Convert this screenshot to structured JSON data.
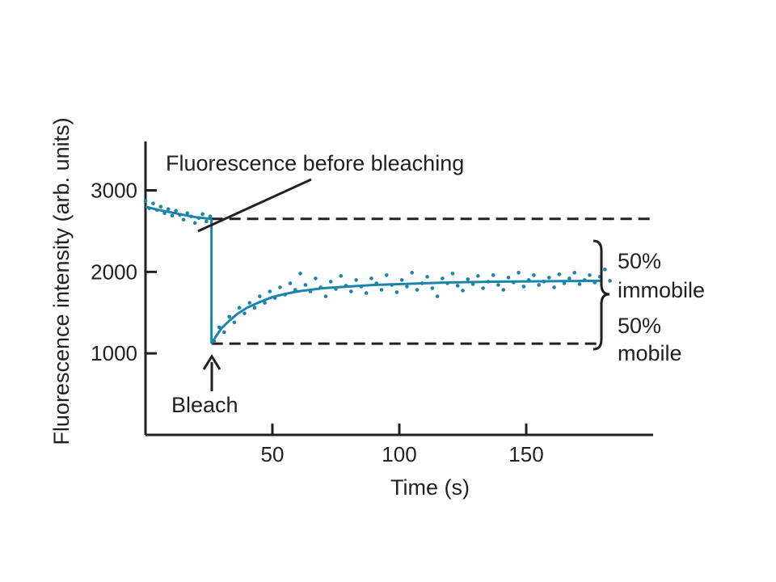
{
  "chart_data": {
    "type": "scatter",
    "title": "",
    "xlabel": "Time (s)",
    "ylabel": "Fluorescence intensity (arb. units)",
    "xlim": [
      0,
      200
    ],
    "ylim": [
      0,
      3600
    ],
    "x_ticks": [
      50,
      100,
      150
    ],
    "y_ticks": [
      1000,
      2000,
      3000
    ],
    "x_tick_labels": [
      "50",
      "100",
      "150"
    ],
    "y_tick_labels": [
      "1000",
      "2000",
      "3000"
    ],
    "grid": false,
    "legend": "none",
    "colors": {
      "data": "#1b84a8",
      "axes": "#231f20"
    },
    "bleach_time": 26,
    "pre_bleach_level": 2650,
    "post_bleach_level": 1120,
    "recovery_plateau": 1890,
    "fit": {
      "before": {
        "x": [
          0,
          5,
          10,
          15,
          20,
          26
        ],
        "y": [
          2800,
          2760,
          2730,
          2700,
          2670,
          2650
        ]
      },
      "after": {
        "x": [
          26,
          28,
          30,
          33,
          36,
          40,
          45,
          50,
          55,
          60,
          70,
          80,
          90,
          100,
          120,
          140,
          160,
          180
        ],
        "y": [
          1120,
          1220,
          1310,
          1400,
          1480,
          1560,
          1630,
          1690,
          1730,
          1760,
          1800,
          1820,
          1840,
          1850,
          1870,
          1880,
          1885,
          1890
        ]
      }
    },
    "points": {
      "x": [
        0,
        1.5,
        3,
        4.5,
        6,
        7.5,
        9,
        10.5,
        12,
        13.5,
        15,
        16.5,
        18,
        19.5,
        21,
        22.5,
        24,
        25.5,
        27,
        29,
        31,
        33,
        35,
        37,
        39,
        41,
        43,
        45,
        47,
        49,
        51,
        53,
        55,
        57,
        59,
        61,
        63,
        65,
        67,
        69,
        71,
        73,
        75,
        77,
        79,
        81,
        83,
        85,
        87,
        89,
        91,
        93,
        95,
        97,
        99,
        101,
        103,
        105,
        107,
        109,
        111,
        113,
        115,
        117,
        119,
        121,
        123,
        125,
        127,
        129,
        131,
        133,
        135,
        137,
        139,
        141,
        143,
        145,
        147,
        149,
        151,
        153,
        155,
        157,
        159,
        161,
        163,
        165,
        167,
        169,
        171,
        173,
        175,
        177,
        179,
        181,
        183
      ],
      "y": [
        2870,
        2780,
        2840,
        2760,
        2800,
        2720,
        2770,
        2690,
        2750,
        2700,
        2640,
        2720,
        2680,
        2600,
        2660,
        2710,
        2620,
        2680,
        1150,
        1320,
        1260,
        1450,
        1380,
        1560,
        1490,
        1620,
        1560,
        1700,
        1620,
        1760,
        1680,
        1810,
        1720,
        1860,
        1780,
        1980,
        1840,
        1760,
        1920,
        1810,
        1700,
        1880,
        1790,
        1950,
        1830,
        1760,
        1900,
        1820,
        1740,
        1920,
        1860,
        1780,
        1960,
        1840,
        1750,
        1900,
        1820,
        1990,
        1780,
        1860,
        1940,
        1800,
        1700,
        1920,
        1860,
        1980,
        1830,
        1770,
        1910,
        1850,
        1950,
        1800,
        1880,
        1960,
        1840,
        1780,
        1930,
        1870,
        1990,
        1820,
        1900,
        1960,
        1840,
        1880,
        1930,
        1810,
        1970,
        1860,
        1920,
        1990,
        1850,
        1900,
        1960,
        1870,
        1940,
        2030,
        1890
      ]
    },
    "annotations": {
      "before_label": "Fluorescence before bleaching",
      "bleach_label": "Bleach",
      "immobile_pct": "50%",
      "immobile_label": "immobile",
      "mobile_pct": "50%",
      "mobile_label": "mobile"
    }
  }
}
